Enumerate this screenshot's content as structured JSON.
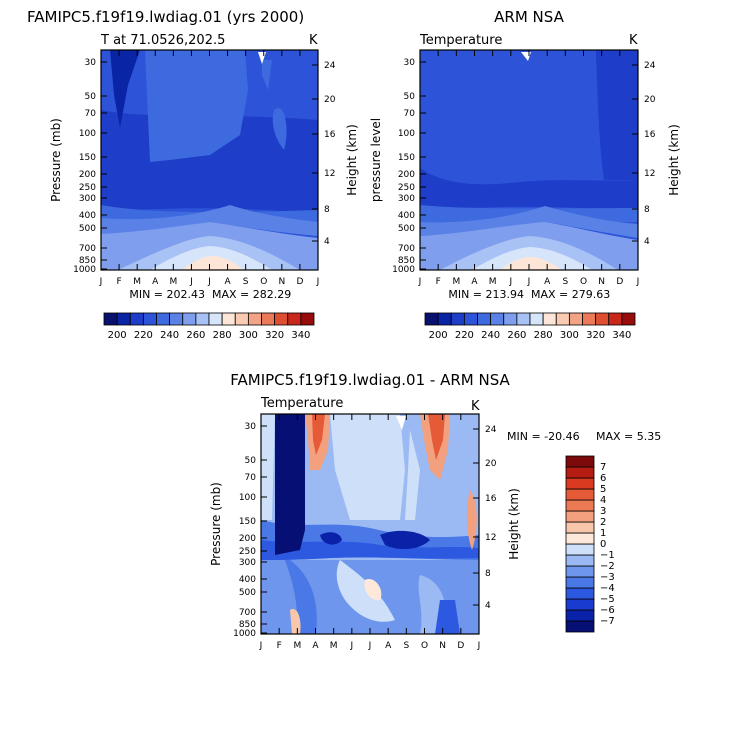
{
  "chart_data": [
    {
      "type": "heatmap",
      "panel": "model",
      "title": "FAMIPC5.f19f19.lwdiag.01 (yrs 2000)",
      "subtitle_left": "T at 71.0526,202.5",
      "unit": "K",
      "ylabel": "Pressure (mb)",
      "ylabel_right": "Height (km)",
      "min_text": "MIN = 202.43",
      "max_text": "MAX = 282.29",
      "months": [
        "J",
        "F",
        "M",
        "A",
        "M",
        "J",
        "J",
        "A",
        "S",
        "O",
        "N",
        "D",
        "J"
      ],
      "pressure_ticks": [
        "30",
        "50",
        "70",
        "100",
        "150",
        "200",
        "250",
        "300",
        "400",
        "500",
        "700",
        "850",
        "1000"
      ],
      "height_ticks": [
        "24",
        "20",
        "16",
        "12",
        "8",
        "4"
      ],
      "colorbar_ticks": [
        "200",
        "220",
        "240",
        "260",
        "280",
        "300",
        "320",
        "340"
      ],
      "colorbar_levels": [
        190,
        200,
        210,
        220,
        230,
        240,
        250,
        260,
        270,
        280,
        290,
        300,
        310,
        320,
        330,
        340,
        350
      ],
      "colors": [
        "#08126e",
        "#0a24a6",
        "#1e3dc8",
        "#2d54d8",
        "#3d6ade",
        "#5a82e6",
        "#7f9fee",
        "#a9c2f5",
        "#d7e5fb",
        "#fde6d8",
        "#f9cbb3",
        "#f3a385",
        "#ea7a5a",
        "#de4f31",
        "#c9271b",
        "#970b0b"
      ]
    },
    {
      "type": "heatmap",
      "panel": "obs",
      "title": "ARM NSA",
      "subtitle_left": "Temperature",
      "unit": "K",
      "ylabel": "pressure level",
      "ylabel_right": "Height (km)",
      "min_text": "MIN = 213.94",
      "max_text": "MAX = 279.63",
      "months": [
        "J",
        "F",
        "M",
        "A",
        "M",
        "J",
        "J",
        "A",
        "S",
        "O",
        "N",
        "D",
        "J"
      ],
      "pressure_ticks": [
        "30",
        "50",
        "70",
        "100",
        "150",
        "200",
        "250",
        "300",
        "400",
        "500",
        "700",
        "850",
        "1000"
      ],
      "height_ticks": [
        "24",
        "20",
        "16",
        "12",
        "8",
        "4"
      ],
      "colorbar_ticks": [
        "200",
        "220",
        "240",
        "260",
        "280",
        "300",
        "320",
        "340"
      ]
    },
    {
      "type": "heatmap",
      "panel": "diff",
      "title": "FAMIPC5.f19f19.lwdiag.01 - ARM NSA",
      "subtitle_left": "Temperature",
      "unit": "K",
      "ylabel": "Pressure (mb)",
      "ylabel_right": "Height (km)",
      "min_text": "MIN = -20.46",
      "max_text": "MAX =    5.35",
      "months": [
        "J",
        "F",
        "M",
        "A",
        "M",
        "J",
        "J",
        "A",
        "S",
        "O",
        "N",
        "D",
        "J"
      ],
      "pressure_ticks": [
        "30",
        "50",
        "70",
        "100",
        "150",
        "200",
        "250",
        "300",
        "400",
        "500",
        "700",
        "850",
        "1000"
      ],
      "height_ticks": [
        "24",
        "20",
        "16",
        "12",
        "8",
        "4"
      ],
      "colorbar_ticks": [
        "7",
        "6",
        "5",
        "4",
        "3",
        "2",
        "1",
        "0",
        "-1",
        "-2",
        "-3",
        "-4",
        "-5",
        "-6",
        "-7"
      ],
      "colorbar_levels": [
        -8,
        -7,
        -6,
        -5,
        -4,
        -3,
        -2,
        -1,
        0,
        1,
        2,
        3,
        4,
        5,
        6,
        7,
        8
      ],
      "colors": [
        "#060f74",
        "#0a22a8",
        "#1a3bd0",
        "#2d59e0",
        "#4a78e6",
        "#6e96ec",
        "#9bb9f3",
        "#cddff9",
        "#fde8da",
        "#f8c6ab",
        "#f3a07e",
        "#ec7a55",
        "#e55a37",
        "#d93a20",
        "#b51d12",
        "#7d0a0a"
      ]
    }
  ]
}
